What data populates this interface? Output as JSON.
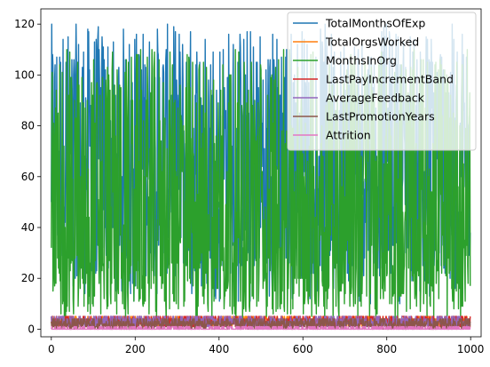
{
  "chart_data": {
    "type": "line",
    "title": "",
    "xlabel": "",
    "ylabel": "",
    "xlim": [
      -25,
      1025
    ],
    "ylim": [
      -3,
      126
    ],
    "xticks": [
      0,
      200,
      400,
      600,
      800,
      1000
    ],
    "yticks": [
      0,
      20,
      40,
      60,
      80,
      100,
      120
    ],
    "grid": false,
    "legend_position": "top-right",
    "n_points": 1000,
    "series": [
      {
        "name": "TotalMonthsOfExp",
        "color": "#1f77b4",
        "range": [
          0,
          120
        ],
        "pattern": "dense oscillating values mostly between 10 and 120"
      },
      {
        "name": "TotalOrgsWorked",
        "color": "#ff7f0e",
        "range": [
          1,
          5
        ],
        "pattern": "small integer values near the bottom"
      },
      {
        "name": "MonthsInOrg",
        "color": "#2ca02c",
        "range": [
          0,
          117
        ],
        "pattern": "dense oscillating values mostly between 5 and 110"
      },
      {
        "name": "LastPayIncrementBand",
        "color": "#d62728",
        "range": [
          1,
          5
        ],
        "pattern": "small integer band 1-5"
      },
      {
        "name": "AverageFeedback",
        "color": "#9467bd",
        "range": [
          1,
          5
        ],
        "pattern": "small integer rating 1-5"
      },
      {
        "name": "LastPromotionYears",
        "color": "#8c564b",
        "range": [
          0,
          4
        ],
        "pattern": "small integer 0-4"
      },
      {
        "name": "Attrition",
        "color": "#e377c2",
        "range": [
          0,
          1
        ],
        "pattern": "binary 0 or 1"
      }
    ]
  }
}
